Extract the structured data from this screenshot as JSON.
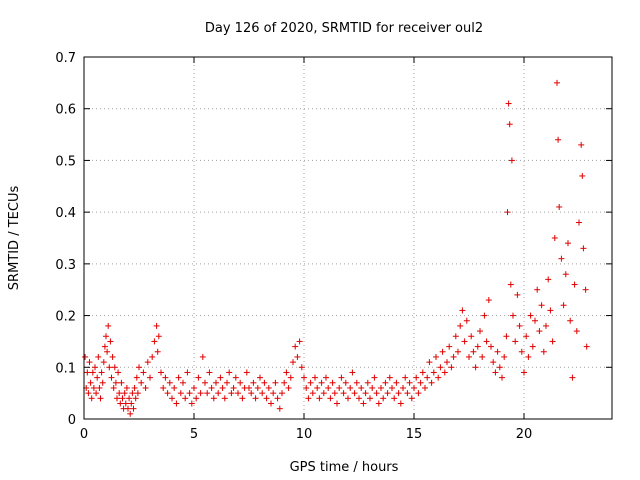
{
  "chart_data": {
    "type": "scatter",
    "title": "Day 126 of 2020, SRMTID for receiver oul2",
    "xlabel": "GPS time / hours",
    "ylabel": "SRMTID / TECUs",
    "xlim": [
      0,
      24
    ],
    "ylim": [
      0,
      0.7
    ],
    "xticks": [
      0,
      5,
      10,
      15,
      20
    ],
    "yticks": [
      0,
      0.1,
      0.2,
      0.3,
      0.4,
      0.5,
      0.6,
      0.7
    ],
    "xtick_labels": [
      "0",
      "5",
      "10",
      "15",
      "20"
    ],
    "ytick_labels": [
      "0",
      "0.1",
      "0.2",
      "0.3",
      "0.4",
      "0.5",
      "0.6",
      "0.7"
    ],
    "grid": true,
    "marker": "+",
    "color": "#e00000",
    "series": [
      {
        "name": "SRMTID",
        "points": [
          [
            0.05,
            0.12
          ],
          [
            0.1,
            0.06
          ],
          [
            0.15,
            0.09
          ],
          [
            0.2,
            0.05
          ],
          [
            0.25,
            0.11
          ],
          [
            0.3,
            0.07
          ],
          [
            0.35,
            0.04
          ],
          [
            0.4,
            0.09
          ],
          [
            0.45,
            0.06
          ],
          [
            0.5,
            0.1
          ],
          [
            0.55,
            0.05
          ],
          [
            0.6,
            0.08
          ],
          [
            0.65,
            0.12
          ],
          [
            0.7,
            0.06
          ],
          [
            0.75,
            0.04
          ],
          [
            0.8,
            0.09
          ],
          [
            0.85,
            0.07
          ],
          [
            0.9,
            0.11
          ],
          [
            0.95,
            0.14
          ],
          [
            1.0,
            0.16
          ],
          [
            1.05,
            0.13
          ],
          [
            1.1,
            0.18
          ],
          [
            1.15,
            0.1
          ],
          [
            1.2,
            0.15
          ],
          [
            1.25,
            0.08
          ],
          [
            1.3,
            0.12
          ],
          [
            1.35,
            0.06
          ],
          [
            1.4,
            0.1
          ],
          [
            1.45,
            0.07
          ],
          [
            1.5,
            0.04
          ],
          [
            1.55,
            0.09
          ],
          [
            1.6,
            0.05
          ],
          [
            1.65,
            0.03
          ],
          [
            1.7,
            0.07
          ],
          [
            1.75,
            0.04
          ],
          [
            1.8,
            0.02
          ],
          [
            1.85,
            0.05
          ],
          [
            1.9,
            0.03
          ],
          [
            1.95,
            0.06
          ],
          [
            2.0,
            0.02
          ],
          [
            2.05,
            0.04
          ],
          [
            2.1,
            0.01
          ],
          [
            2.15,
            0.03
          ],
          [
            2.2,
            0.05
          ],
          [
            2.25,
            0.02
          ],
          [
            2.3,
            0.06
          ],
          [
            2.35,
            0.04
          ],
          [
            2.4,
            0.08
          ],
          [
            2.45,
            0.05
          ],
          [
            2.5,
            0.1
          ],
          [
            2.6,
            0.07
          ],
          [
            2.7,
            0.09
          ],
          [
            2.8,
            0.06
          ],
          [
            2.9,
            0.11
          ],
          [
            3.0,
            0.08
          ],
          [
            3.1,
            0.12
          ],
          [
            3.2,
            0.15
          ],
          [
            3.3,
            0.18
          ],
          [
            3.35,
            0.13
          ],
          [
            3.4,
            0.16
          ],
          [
            3.5,
            0.09
          ],
          [
            3.6,
            0.06
          ],
          [
            3.7,
            0.08
          ],
          [
            3.8,
            0.05
          ],
          [
            3.9,
            0.07
          ],
          [
            4.0,
            0.04
          ],
          [
            4.1,
            0.06
          ],
          [
            4.2,
            0.03
          ],
          [
            4.3,
            0.08
          ],
          [
            4.4,
            0.05
          ],
          [
            4.5,
            0.07
          ],
          [
            4.6,
            0.04
          ],
          [
            4.7,
            0.09
          ],
          [
            4.8,
            0.05
          ],
          [
            4.9,
            0.03
          ],
          [
            5.0,
            0.06
          ],
          [
            5.1,
            0.04
          ],
          [
            5.2,
            0.08
          ],
          [
            5.3,
            0.05
          ],
          [
            5.4,
            0.12
          ],
          [
            5.5,
            0.07
          ],
          [
            5.6,
            0.05
          ],
          [
            5.7,
            0.09
          ],
          [
            5.8,
            0.06
          ],
          [
            5.9,
            0.04
          ],
          [
            6.0,
            0.07
          ],
          [
            6.1,
            0.05
          ],
          [
            6.2,
            0.08
          ],
          [
            6.3,
            0.06
          ],
          [
            6.4,
            0.04
          ],
          [
            6.5,
            0.07
          ],
          [
            6.6,
            0.09
          ],
          [
            6.7,
            0.05
          ],
          [
            6.8,
            0.06
          ],
          [
            6.9,
            0.08
          ],
          [
            7.0,
            0.05
          ],
          [
            7.1,
            0.07
          ],
          [
            7.2,
            0.04
          ],
          [
            7.3,
            0.06
          ],
          [
            7.4,
            0.09
          ],
          [
            7.5,
            0.06
          ],
          [
            7.6,
            0.05
          ],
          [
            7.7,
            0.07
          ],
          [
            7.8,
            0.04
          ],
          [
            7.9,
            0.06
          ],
          [
            8.0,
            0.08
          ],
          [
            8.1,
            0.05
          ],
          [
            8.2,
            0.07
          ],
          [
            8.3,
            0.04
          ],
          [
            8.4,
            0.06
          ],
          [
            8.5,
            0.03
          ],
          [
            8.6,
            0.05
          ],
          [
            8.7,
            0.07
          ],
          [
            8.8,
            0.04
          ],
          [
            8.9,
            0.02
          ],
          [
            9.0,
            0.05
          ],
          [
            9.1,
            0.07
          ],
          [
            9.2,
            0.09
          ],
          [
            9.3,
            0.06
          ],
          [
            9.4,
            0.08
          ],
          [
            9.5,
            0.11
          ],
          [
            9.6,
            0.14
          ],
          [
            9.7,
            0.12
          ],
          [
            9.8,
            0.15
          ],
          [
            9.9,
            0.1
          ],
          [
            10.0,
            0.08
          ],
          [
            10.1,
            0.06
          ],
          [
            10.2,
            0.04
          ],
          [
            10.3,
            0.07
          ],
          [
            10.4,
            0.05
          ],
          [
            10.5,
            0.08
          ],
          [
            10.6,
            0.06
          ],
          [
            10.7,
            0.04
          ],
          [
            10.8,
            0.07
          ],
          [
            10.9,
            0.05
          ],
          [
            11.0,
            0.08
          ],
          [
            11.1,
            0.06
          ],
          [
            11.2,
            0.04
          ],
          [
            11.3,
            0.07
          ],
          [
            11.4,
            0.05
          ],
          [
            11.5,
            0.03
          ],
          [
            11.6,
            0.06
          ],
          [
            11.7,
            0.08
          ],
          [
            11.8,
            0.05
          ],
          [
            11.9,
            0.07
          ],
          [
            12.0,
            0.04
          ],
          [
            12.1,
            0.06
          ],
          [
            12.2,
            0.09
          ],
          [
            12.3,
            0.05
          ],
          [
            12.4,
            0.07
          ],
          [
            12.5,
            0.04
          ],
          [
            12.6,
            0.06
          ],
          [
            12.7,
            0.03
          ],
          [
            12.8,
            0.05
          ],
          [
            12.9,
            0.07
          ],
          [
            13.0,
            0.04
          ],
          [
            13.1,
            0.06
          ],
          [
            13.2,
            0.08
          ],
          [
            13.3,
            0.05
          ],
          [
            13.4,
            0.03
          ],
          [
            13.5,
            0.06
          ],
          [
            13.6,
            0.04
          ],
          [
            13.7,
            0.07
          ],
          [
            13.8,
            0.05
          ],
          [
            13.9,
            0.08
          ],
          [
            14.0,
            0.06
          ],
          [
            14.1,
            0.04
          ],
          [
            14.2,
            0.07
          ],
          [
            14.3,
            0.05
          ],
          [
            14.4,
            0.03
          ],
          [
            14.5,
            0.06
          ],
          [
            14.6,
            0.08
          ],
          [
            14.7,
            0.05
          ],
          [
            14.8,
            0.07
          ],
          [
            14.9,
            0.04
          ],
          [
            15.0,
            0.06
          ],
          [
            15.1,
            0.08
          ],
          [
            15.2,
            0.05
          ],
          [
            15.3,
            0.07
          ],
          [
            15.4,
            0.09
          ],
          [
            15.5,
            0.06
          ],
          [
            15.6,
            0.08
          ],
          [
            15.7,
            0.11
          ],
          [
            15.8,
            0.07
          ],
          [
            15.9,
            0.09
          ],
          [
            16.0,
            0.12
          ],
          [
            16.1,
            0.08
          ],
          [
            16.2,
            0.1
          ],
          [
            16.3,
            0.13
          ],
          [
            16.4,
            0.09
          ],
          [
            16.5,
            0.11
          ],
          [
            16.6,
            0.14
          ],
          [
            16.7,
            0.1
          ],
          [
            16.8,
            0.12
          ],
          [
            16.9,
            0.16
          ],
          [
            17.0,
            0.13
          ],
          [
            17.1,
            0.18
          ],
          [
            17.2,
            0.21
          ],
          [
            17.3,
            0.15
          ],
          [
            17.4,
            0.19
          ],
          [
            17.5,
            0.12
          ],
          [
            17.6,
            0.16
          ],
          [
            17.7,
            0.13
          ],
          [
            17.8,
            0.1
          ],
          [
            17.9,
            0.14
          ],
          [
            18.0,
            0.17
          ],
          [
            18.1,
            0.12
          ],
          [
            18.2,
            0.2
          ],
          [
            18.3,
            0.15
          ],
          [
            18.4,
            0.23
          ],
          [
            18.5,
            0.14
          ],
          [
            18.6,
            0.11
          ],
          [
            18.7,
            0.09
          ],
          [
            18.8,
            0.13
          ],
          [
            18.9,
            0.1
          ],
          [
            19.0,
            0.08
          ],
          [
            19.1,
            0.12
          ],
          [
            19.2,
            0.16
          ],
          [
            19.25,
            0.4
          ],
          [
            19.3,
            0.61
          ],
          [
            19.35,
            0.57
          ],
          [
            19.4,
            0.26
          ],
          [
            19.45,
            0.5
          ],
          [
            19.5,
            0.2
          ],
          [
            19.6,
            0.15
          ],
          [
            19.7,
            0.24
          ],
          [
            19.8,
            0.18
          ],
          [
            19.9,
            0.13
          ],
          [
            20.0,
            0.09
          ],
          [
            20.1,
            0.16
          ],
          [
            20.2,
            0.12
          ],
          [
            20.3,
            0.2
          ],
          [
            20.4,
            0.14
          ],
          [
            20.5,
            0.19
          ],
          [
            20.6,
            0.25
          ],
          [
            20.7,
            0.17
          ],
          [
            20.8,
            0.22
          ],
          [
            20.9,
            0.13
          ],
          [
            21.0,
            0.18
          ],
          [
            21.1,
            0.27
          ],
          [
            21.2,
            0.21
          ],
          [
            21.3,
            0.15
          ],
          [
            21.4,
            0.35
          ],
          [
            21.5,
            0.65
          ],
          [
            21.55,
            0.54
          ],
          [
            21.6,
            0.41
          ],
          [
            21.7,
            0.31
          ],
          [
            21.8,
            0.22
          ],
          [
            21.9,
            0.28
          ],
          [
            22.0,
            0.34
          ],
          [
            22.1,
            0.19
          ],
          [
            22.2,
            0.08
          ],
          [
            22.3,
            0.26
          ],
          [
            22.4,
            0.17
          ],
          [
            22.5,
            0.38
          ],
          [
            22.6,
            0.53
          ],
          [
            22.65,
            0.47
          ],
          [
            22.7,
            0.33
          ],
          [
            22.8,
            0.25
          ],
          [
            22.85,
            0.14
          ]
        ]
      }
    ]
  }
}
